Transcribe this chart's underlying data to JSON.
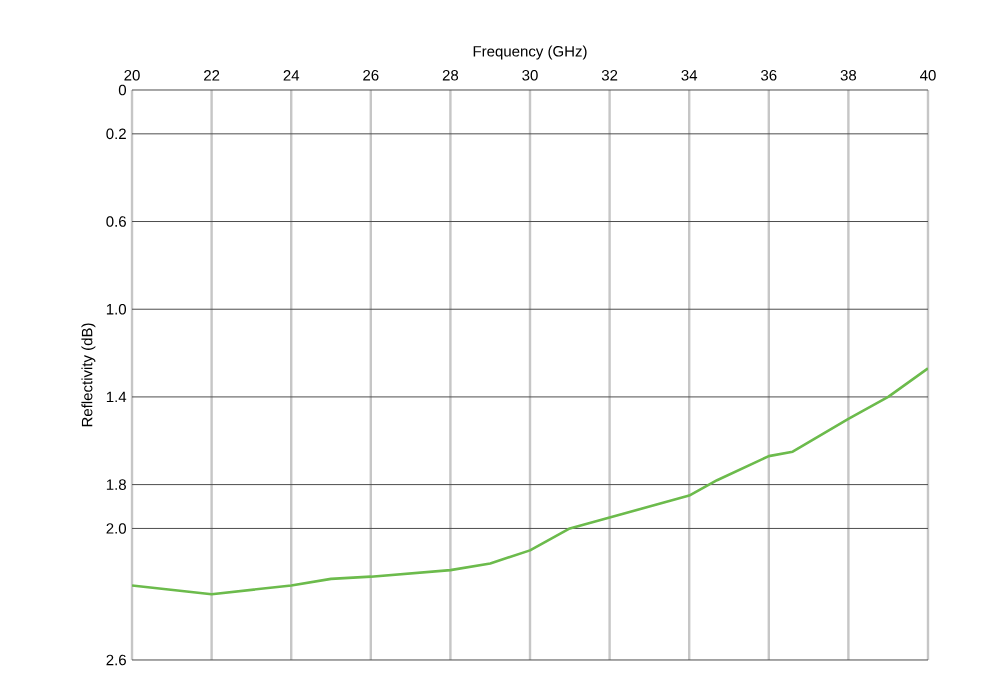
{
  "chart_data": {
    "type": "line",
    "xlabel": "Frequency (GHz)",
    "ylabel": "Reflectivity (dB)",
    "x": [
      20,
      22,
      24,
      25,
      26,
      28,
      29,
      30,
      31,
      32,
      33,
      34,
      34.7,
      36,
      36.6,
      38,
      39,
      40
    ],
    "series": [
      {
        "color": "#6cbb4c",
        "values": [
          2.26,
          2.3,
          2.26,
          2.23,
          2.22,
          2.19,
          2.16,
          2.1,
          2.0,
          1.95,
          1.9,
          1.85,
          1.78,
          1.67,
          1.65,
          1.5,
          1.4,
          1.27
        ]
      }
    ],
    "xlim": [
      20,
      40
    ],
    "ylim": [
      2.6,
      0
    ],
    "xticks": [
      20,
      22,
      24,
      26,
      28,
      30,
      32,
      34,
      36,
      38,
      40
    ],
    "yticks": [
      0,
      0.2,
      0.6,
      {
        "value": 1,
        "label": "1.0"
      },
      1.4,
      1.8,
      {
        "value": 2,
        "label": "2.0"
      },
      2.6
    ],
    "grid": true,
    "marker": "none",
    "line_style": "solid"
  }
}
